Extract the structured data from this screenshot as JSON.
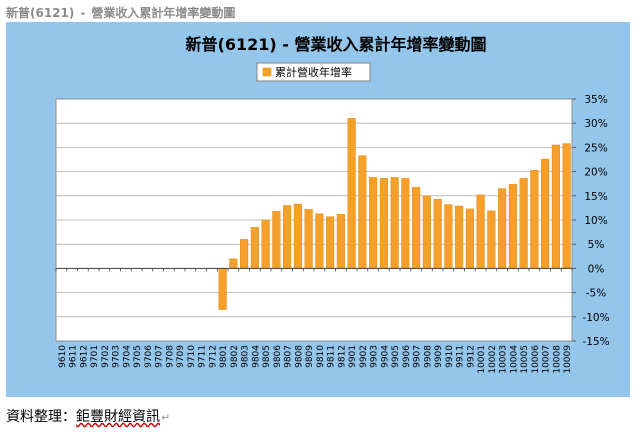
{
  "page": {
    "heading_company": "新普(6121)",
    "heading_sep": "-",
    "heading_title": "營業收入累計年增率變動圖"
  },
  "source": {
    "label": "資料整理：",
    "company": "鉅豐財經資訊",
    "return_mark": "↵"
  },
  "colors": {
    "panel": "#94c5ea",
    "plot": "#ffffff",
    "bar": "#f5a02b",
    "bar_edge": "#d9851a",
    "grid": "#b0b0b0",
    "text": "#000000"
  },
  "chart_data": {
    "type": "bar",
    "title": "新普(6121) -  營業收入累計年增率變動圖",
    "legend": {
      "label": "累計營收年增率",
      "position": "top"
    },
    "xlabel": "",
    "ylabel": "",
    "y_axis_side": "right",
    "ylim": [
      -15,
      35
    ],
    "yticks": [
      -15,
      -10,
      -5,
      0,
      5,
      10,
      15,
      20,
      25,
      30,
      35
    ],
    "ytick_labels": [
      "-15%",
      "-10%",
      "-5%",
      "0%",
      "5%",
      "10%",
      "15%",
      "20%",
      "25%",
      "30%",
      "35%"
    ],
    "grid": true,
    "categories": [
      "9610",
      "9611",
      "9612",
      "9701",
      "9702",
      "9703",
      "9704",
      "9705",
      "9706",
      "9707",
      "9708",
      "9709",
      "9710",
      "9711",
      "9712",
      "9801",
      "9802",
      "9803",
      "9804",
      "9805",
      "9806",
      "9807",
      "9808",
      "9809",
      "9810",
      "9811",
      "9812",
      "9901",
      "9902",
      "9903",
      "9904",
      "9905",
      "9906",
      "9907",
      "9908",
      "9909",
      "9910",
      "9911",
      "9912",
      "10001",
      "10002",
      "10003",
      "10004",
      "10005",
      "10006",
      "10007",
      "10008",
      "10009"
    ],
    "series": [
      {
        "values": [
          0,
          0,
          0,
          0,
          0,
          0,
          0,
          0,
          0,
          0,
          0,
          0,
          0,
          0,
          0,
          -8.5,
          2,
          6,
          8.5,
          10,
          11.8,
          13,
          13.3,
          12.2,
          11.3,
          10.7,
          11.2,
          31,
          23.3,
          18.8,
          18.6,
          18.8,
          18.6,
          16.8,
          15,
          14.3,
          13.2,
          12.9,
          12.3,
          15.2,
          11.9,
          16.5,
          17.4,
          18.6,
          20.3,
          22.6,
          25.5,
          25.8
        ]
      }
    ]
  }
}
